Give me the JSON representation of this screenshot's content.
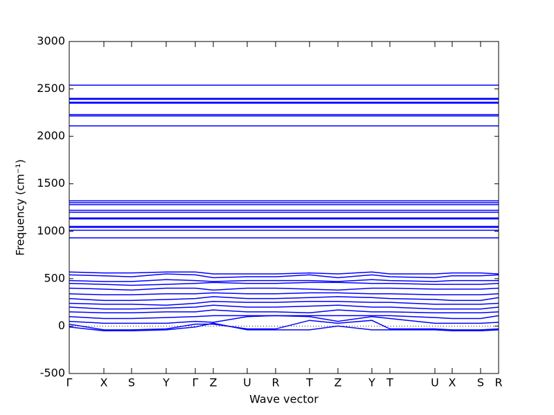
{
  "chart_data": {
    "type": "line",
    "xlabel": "Wave vector",
    "ylabel": "Frequency (cm⁻¹)",
    "color": "#0000ff",
    "x": [
      0,
      0.5,
      0.9,
      1.4,
      1.82,
      2.08,
      2.57,
      2.98,
      3.47,
      3.88,
      4.37,
      4.63,
      5.28,
      5.53,
      5.94,
      6.2
    ],
    "xlim": [
      0,
      6.2
    ],
    "xticks": [
      {
        "value": 0,
        "label": "Γ"
      },
      {
        "value": 0.5,
        "label": "X"
      },
      {
        "value": 0.9,
        "label": "S"
      },
      {
        "value": 1.4,
        "label": "Y"
      },
      {
        "value": 1.82,
        "label": "Γ"
      },
      {
        "value": 2.08,
        "label": "Z"
      },
      {
        "value": 2.57,
        "label": "U"
      },
      {
        "value": 2.98,
        "label": "R"
      },
      {
        "value": 3.47,
        "label": "T"
      },
      {
        "value": 3.88,
        "label": "Z"
      },
      {
        "value": 4.37,
        "label": "Y"
      },
      {
        "value": 4.63,
        "label": "T"
      },
      {
        "value": 5.28,
        "label": "U"
      },
      {
        "value": 5.53,
        "label": "X"
      },
      {
        "value": 5.94,
        "label": "S"
      },
      {
        "value": 6.2,
        "label": "R"
      }
    ],
    "ylim": [
      -500,
      3000
    ],
    "yticks": [
      -500,
      0,
      500,
      1000,
      1500,
      2000,
      2500,
      3000
    ],
    "series": [
      {
        "values": [
          -10,
          -50,
          -50,
          -40,
          -10,
          30,
          -40,
          -40,
          -40,
          0,
          -40,
          -40,
          -40,
          -50,
          -50,
          -40
        ]
      },
      {
        "values": [
          20,
          -40,
          -40,
          -30,
          20,
          20,
          -30,
          -30,
          60,
          30,
          60,
          -30,
          -30,
          -40,
          -40,
          -30
        ]
      },
      {
        "values": [
          50,
          30,
          30,
          30,
          50,
          40,
          100,
          110,
          100,
          50,
          100,
          80,
          30,
          30,
          30,
          40
        ]
      },
      {
        "values": [
          100,
          80,
          80,
          90,
          100,
          110,
          110,
          110,
          110,
          110,
          110,
          110,
          90,
          80,
          80,
          110
        ]
      },
      {
        "values": [
          150,
          140,
          140,
          150,
          150,
          170,
          150,
          150,
          140,
          170,
          150,
          150,
          140,
          140,
          140,
          150
        ]
      },
      {
        "values": [
          200,
          180,
          180,
          190,
          200,
          220,
          200,
          200,
          210,
          220,
          200,
          200,
          180,
          180,
          180,
          200
        ]
      },
      {
        "values": [
          240,
          230,
          230,
          220,
          240,
          260,
          250,
          250,
          260,
          260,
          250,
          250,
          230,
          230,
          230,
          240
        ]
      },
      {
        "values": [
          290,
          270,
          270,
          280,
          290,
          310,
          290,
          290,
          300,
          310,
          300,
          290,
          280,
          270,
          270,
          300
        ]
      },
      {
        "values": [
          340,
          330,
          330,
          340,
          340,
          350,
          340,
          340,
          350,
          350,
          340,
          340,
          330,
          330,
          330,
          340
        ]
      },
      {
        "values": [
          400,
          390,
          380,
          400,
          400,
          380,
          400,
          400,
          390,
          380,
          400,
          400,
          390,
          390,
          390,
          400
        ]
      },
      {
        "values": [
          450,
          440,
          430,
          440,
          450,
          460,
          450,
          450,
          460,
          460,
          450,
          450,
          440,
          440,
          440,
          450
        ]
      },
      {
        "values": [
          480,
          470,
          470,
          490,
          480,
          470,
          480,
          480,
          480,
          470,
          490,
          480,
          470,
          480,
          480,
          480
        ]
      },
      {
        "values": [
          540,
          530,
          520,
          550,
          540,
          510,
          520,
          520,
          540,
          510,
          540,
          520,
          510,
          530,
          530,
          540
        ]
      },
      {
        "values": [
          570,
          560,
          560,
          570,
          570,
          550,
          550,
          550,
          560,
          550,
          570,
          550,
          550,
          560,
          560,
          550
        ]
      },
      {
        "values": [
          930,
          930,
          930,
          930,
          930,
          930,
          930,
          930,
          930,
          930,
          930,
          930,
          930,
          930,
          930,
          930
        ]
      },
      {
        "values": [
          1010,
          1010,
          1010,
          1010,
          1010,
          1010,
          1010,
          1010,
          1010,
          1010,
          1010,
          1010,
          1010,
          1010,
          1010,
          1010
        ]
      },
      {
        "values": [
          1040,
          1040,
          1040,
          1040,
          1040,
          1040,
          1040,
          1040,
          1040,
          1040,
          1040,
          1040,
          1040,
          1040,
          1040,
          1040
        ]
      },
      {
        "values": [
          1050,
          1050,
          1050,
          1050,
          1050,
          1050,
          1050,
          1050,
          1050,
          1050,
          1050,
          1050,
          1050,
          1050,
          1050,
          1050
        ]
      },
      {
        "values": [
          1130,
          1130,
          1130,
          1130,
          1130,
          1130,
          1130,
          1130,
          1130,
          1130,
          1130,
          1130,
          1130,
          1130,
          1130,
          1130
        ]
      },
      {
        "values": [
          1140,
          1140,
          1140,
          1140,
          1140,
          1140,
          1140,
          1140,
          1140,
          1140,
          1140,
          1140,
          1140,
          1140,
          1140,
          1140
        ]
      },
      {
        "values": [
          1200,
          1200,
          1200,
          1200,
          1200,
          1200,
          1200,
          1200,
          1200,
          1200,
          1200,
          1200,
          1200,
          1200,
          1200,
          1200
        ]
      },
      {
        "values": [
          1220,
          1220,
          1220,
          1220,
          1220,
          1220,
          1220,
          1220,
          1220,
          1220,
          1220,
          1220,
          1220,
          1220,
          1220,
          1220
        ]
      },
      {
        "values": [
          1280,
          1280,
          1280,
          1280,
          1280,
          1280,
          1280,
          1280,
          1280,
          1280,
          1280,
          1280,
          1280,
          1280,
          1280,
          1280
        ]
      },
      {
        "values": [
          1300,
          1300,
          1300,
          1300,
          1300,
          1300,
          1300,
          1300,
          1300,
          1300,
          1300,
          1300,
          1300,
          1300,
          1300,
          1300
        ]
      },
      {
        "values": [
          1320,
          1320,
          1320,
          1320,
          1320,
          1320,
          1320,
          1320,
          1320,
          1320,
          1320,
          1320,
          1320,
          1320,
          1320,
          1320
        ]
      },
      {
        "values": [
          2110,
          2110,
          2110,
          2110,
          2110,
          2110,
          2110,
          2110,
          2110,
          2110,
          2110,
          2110,
          2110,
          2110,
          2110,
          2110
        ]
      },
      {
        "values": [
          2215,
          2215,
          2215,
          2215,
          2215,
          2215,
          2215,
          2215,
          2215,
          2215,
          2215,
          2215,
          2215,
          2215,
          2215,
          2215
        ]
      },
      {
        "values": [
          2230,
          2230,
          2230,
          2230,
          2230,
          2230,
          2230,
          2230,
          2230,
          2230,
          2230,
          2230,
          2230,
          2230,
          2230,
          2230
        ]
      },
      {
        "values": [
          2350,
          2350,
          2350,
          2350,
          2350,
          2350,
          2350,
          2350,
          2350,
          2350,
          2350,
          2350,
          2350,
          2350,
          2350,
          2350
        ]
      },
      {
        "values": [
          2360,
          2360,
          2360,
          2360,
          2360,
          2360,
          2360,
          2360,
          2360,
          2360,
          2360,
          2360,
          2360,
          2360,
          2360,
          2360
        ]
      },
      {
        "values": [
          2390,
          2390,
          2390,
          2390,
          2390,
          2390,
          2390,
          2390,
          2390,
          2390,
          2390,
          2390,
          2390,
          2390,
          2390,
          2390
        ]
      },
      {
        "values": [
          2400,
          2400,
          2400,
          2400,
          2400,
          2400,
          2400,
          2400,
          2400,
          2400,
          2400,
          2400,
          2400,
          2400,
          2400,
          2400
        ]
      },
      {
        "values": [
          2540,
          2540,
          2540,
          2540,
          2540,
          2540,
          2540,
          2540,
          2540,
          2540,
          2540,
          2540,
          2540,
          2540,
          2540,
          2540
        ]
      }
    ]
  }
}
